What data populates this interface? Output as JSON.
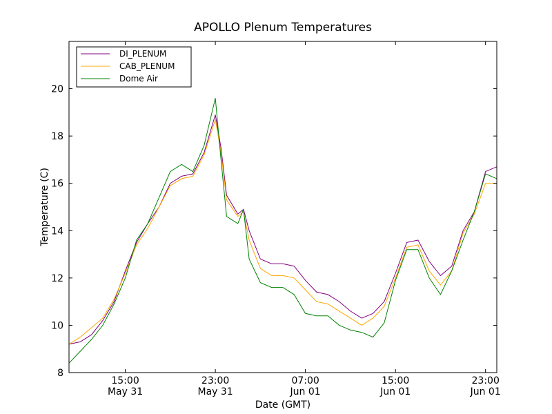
{
  "chart_data": {
    "type": "line",
    "title": "APOLLO Plenum Temperatures",
    "xlabel": "Date (GMT)",
    "ylabel": "Temperature (C)",
    "x_unit": "hours since May 31 10:00 GMT",
    "xlim": [
      0,
      38
    ],
    "ylim": [
      8,
      22
    ],
    "y_ticks": [
      8,
      10,
      12,
      14,
      16,
      18,
      20
    ],
    "y_tick_labels": [
      "8",
      "10",
      "12",
      "14",
      "16",
      "18",
      "20"
    ],
    "x_ticks": [
      {
        "hours": 5,
        "time": "15:00",
        "date": "May 31"
      },
      {
        "hours": 13,
        "time": "23:00",
        "date": "May 31"
      },
      {
        "hours": 21,
        "time": "07:00",
        "date": "Jun 01"
      },
      {
        "hours": 29,
        "time": "15:00",
        "date": "Jun 01"
      },
      {
        "hours": 37,
        "time": "23:00",
        "date": "Jun 01"
      }
    ],
    "legend_position": "top-left",
    "series": [
      {
        "name": "DI_PLENUM",
        "color": "#800080",
        "points": [
          [
            0,
            9.2
          ],
          [
            1,
            9.3
          ],
          [
            2,
            9.6
          ],
          [
            3,
            10.2
          ],
          [
            4,
            11.0
          ],
          [
            5,
            12.3
          ],
          [
            6,
            13.5
          ],
          [
            7,
            14.3
          ],
          [
            8,
            15.0
          ],
          [
            9,
            16.0
          ],
          [
            10,
            16.3
          ],
          [
            11,
            16.4
          ],
          [
            12,
            17.3
          ],
          [
            13,
            18.9
          ],
          [
            13.5,
            17.5
          ],
          [
            14,
            15.5
          ],
          [
            15,
            14.7
          ],
          [
            15.5,
            14.9
          ],
          [
            16,
            14.0
          ],
          [
            17,
            12.8
          ],
          [
            18,
            12.6
          ],
          [
            19,
            12.6
          ],
          [
            20,
            12.5
          ],
          [
            21,
            11.9
          ],
          [
            22,
            11.4
          ],
          [
            23,
            11.3
          ],
          [
            24,
            11.0
          ],
          [
            25,
            10.6
          ],
          [
            26,
            10.3
          ],
          [
            27,
            10.5
          ],
          [
            28,
            11.0
          ],
          [
            29,
            12.2
          ],
          [
            30,
            13.5
          ],
          [
            31,
            13.6
          ],
          [
            32,
            12.7
          ],
          [
            33,
            12.1
          ],
          [
            34,
            12.5
          ],
          [
            35,
            14.0
          ],
          [
            36,
            14.8
          ],
          [
            37,
            16.5
          ],
          [
            38,
            16.7
          ]
        ]
      },
      {
        "name": "CAB_PLENUM",
        "color": "#ffa500",
        "points": [
          [
            0,
            9.2
          ],
          [
            1,
            9.5
          ],
          [
            2,
            9.9
          ],
          [
            3,
            10.3
          ],
          [
            4,
            11.1
          ],
          [
            5,
            12.2
          ],
          [
            6,
            13.4
          ],
          [
            7,
            14.1
          ],
          [
            8,
            15.0
          ],
          [
            9,
            15.9
          ],
          [
            10,
            16.2
          ],
          [
            11,
            16.3
          ],
          [
            12,
            17.2
          ],
          [
            13,
            18.7
          ],
          [
            13.5,
            17.3
          ],
          [
            14,
            15.3
          ],
          [
            15,
            14.6
          ],
          [
            15.5,
            14.8
          ],
          [
            16,
            13.6
          ],
          [
            17,
            12.4
          ],
          [
            18,
            12.1
          ],
          [
            19,
            12.1
          ],
          [
            20,
            12.0
          ],
          [
            21,
            11.5
          ],
          [
            22,
            11.0
          ],
          [
            23,
            10.9
          ],
          [
            24,
            10.6
          ],
          [
            25,
            10.3
          ],
          [
            26,
            10.0
          ],
          [
            27,
            10.3
          ],
          [
            28,
            10.8
          ],
          [
            29,
            12.0
          ],
          [
            30,
            13.3
          ],
          [
            31,
            13.4
          ],
          [
            32,
            12.3
          ],
          [
            33,
            11.7
          ],
          [
            34,
            12.3
          ],
          [
            35,
            13.9
          ],
          [
            36,
            14.7
          ],
          [
            37,
            16.0
          ],
          [
            38,
            16.0
          ]
        ]
      },
      {
        "name": "Dome Air",
        "color": "#008000",
        "points": [
          [
            0,
            8.4
          ],
          [
            1,
            8.9
          ],
          [
            2,
            9.4
          ],
          [
            3,
            10.0
          ],
          [
            4,
            10.9
          ],
          [
            5,
            12.0
          ],
          [
            6,
            13.6
          ],
          [
            7,
            14.3
          ],
          [
            8,
            15.4
          ],
          [
            9,
            16.5
          ],
          [
            10,
            16.8
          ],
          [
            11,
            16.5
          ],
          [
            12,
            17.6
          ],
          [
            13,
            19.6
          ],
          [
            13.5,
            17.0
          ],
          [
            14,
            14.6
          ],
          [
            15,
            14.3
          ],
          [
            15.5,
            14.9
          ],
          [
            16,
            12.8
          ],
          [
            17,
            11.8
          ],
          [
            18,
            11.6
          ],
          [
            19,
            11.6
          ],
          [
            20,
            11.3
          ],
          [
            21,
            10.5
          ],
          [
            22,
            10.4
          ],
          [
            23,
            10.4
          ],
          [
            24,
            10.0
          ],
          [
            25,
            9.8
          ],
          [
            26,
            9.7
          ],
          [
            27,
            9.5
          ],
          [
            28,
            10.1
          ],
          [
            29,
            11.9
          ],
          [
            30,
            13.2
          ],
          [
            31,
            13.2
          ],
          [
            32,
            12.0
          ],
          [
            33,
            11.3
          ],
          [
            34,
            12.3
          ],
          [
            35,
            13.6
          ],
          [
            36,
            14.8
          ],
          [
            37,
            16.4
          ],
          [
            38,
            16.2
          ]
        ]
      }
    ]
  }
}
